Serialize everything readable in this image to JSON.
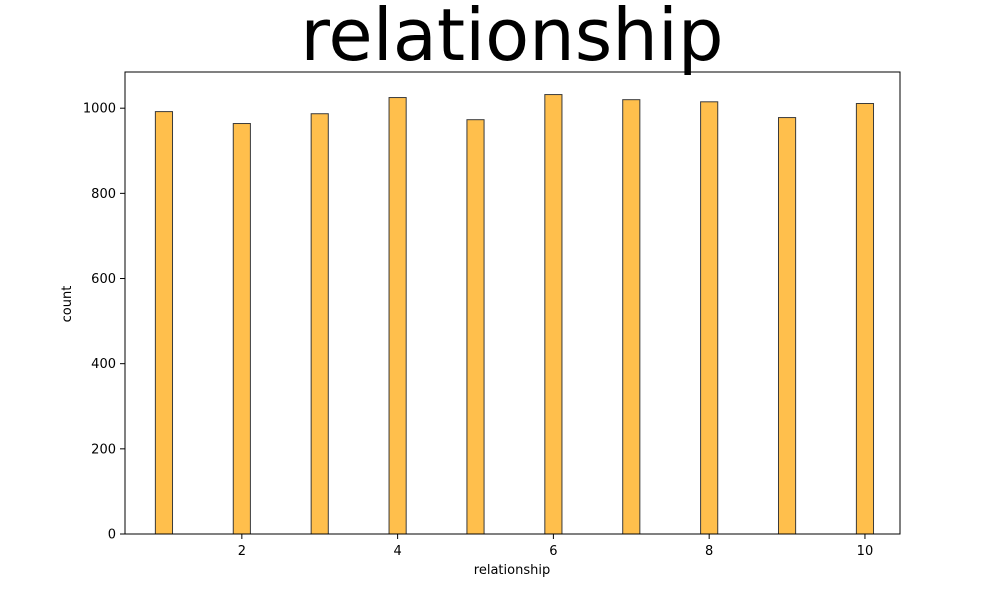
{
  "chart_data": {
    "type": "bar",
    "title": "relationship",
    "xlabel": "relationship",
    "ylabel": "count",
    "x": [
      1,
      2,
      3,
      4,
      5,
      6,
      7,
      8,
      9,
      10
    ],
    "values": [
      992,
      964,
      987,
      1025,
      973,
      1032,
      1020,
      1015,
      978,
      1011
    ],
    "xlim": [
      0.5,
      10.45
    ],
    "ylim": [
      0,
      1085
    ],
    "xticks": [
      2,
      4,
      6,
      8,
      10
    ],
    "yticks": [
      0,
      200,
      400,
      600,
      800,
      1000
    ],
    "bar_width": 0.22,
    "grid": false,
    "bar_color": "#ffbf4c",
    "edge_color": "#3a3a3a"
  }
}
